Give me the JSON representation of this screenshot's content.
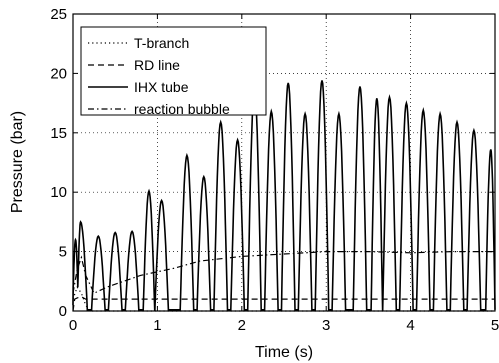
{
  "chart_data": {
    "type": "line",
    "title": "",
    "xlabel": "Time (s)",
    "ylabel": "Pressure (bar)",
    "xlim": [
      0,
      5
    ],
    "ylim": [
      0,
      25
    ],
    "xticks": [
      "0",
      "1",
      "2",
      "3",
      "4",
      "5"
    ],
    "yticks": [
      "0",
      "5",
      "10",
      "15",
      "20",
      "25"
    ],
    "grid": true,
    "legend_position": "top-left",
    "colors": {
      "ink": "#000000",
      "background": "#ffffff"
    },
    "series": [
      {
        "name": "T-branch",
        "style": "dotted",
        "x": [
          0,
          0.05,
          0.1,
          0.15,
          0.2,
          1.0,
          2.0,
          3.0,
          4.0,
          5.0
        ],
        "y": [
          1,
          2,
          1.5,
          0.5,
          0,
          0,
          0,
          0,
          0,
          0
        ]
      },
      {
        "name": "RD line",
        "style": "dashed",
        "x": [
          0,
          0.02,
          0.05,
          0.1,
          0.15,
          1.0,
          2.0,
          3.0,
          4.0,
          5.0
        ],
        "y": [
          0,
          1.0,
          1.1,
          1.2,
          1.0,
          1.0,
          1.0,
          1.0,
          1.0,
          1.0
        ]
      },
      {
        "name": "IHX tube",
        "style": "solid",
        "peaks": [
          {
            "t": 0.03,
            "p": 6.0
          },
          {
            "t": 0.09,
            "p": 7.5
          },
          {
            "t": 0.3,
            "p": 6.3
          },
          {
            "t": 0.5,
            "p": 6.6
          },
          {
            "t": 0.7,
            "p": 6.7
          },
          {
            "t": 0.9,
            "p": 10.1
          },
          {
            "t": 1.05,
            "p": 9.3
          },
          {
            "t": 1.35,
            "p": 13.1
          },
          {
            "t": 1.55,
            "p": 11.3
          },
          {
            "t": 1.75,
            "p": 15.9
          },
          {
            "t": 1.95,
            "p": 14.4
          },
          {
            "t": 2.15,
            "p": 18.6
          },
          {
            "t": 2.35,
            "p": 16.8
          },
          {
            "t": 2.55,
            "p": 19.2
          },
          {
            "t": 2.75,
            "p": 16.6
          },
          {
            "t": 2.95,
            "p": 19.4
          },
          {
            "t": 3.15,
            "p": 16.6
          },
          {
            "t": 3.4,
            "p": 18.9
          },
          {
            "t": 3.6,
            "p": 17.9
          },
          {
            "t": 3.75,
            "p": 18.0
          },
          {
            "t": 3.95,
            "p": 17.5
          },
          {
            "t": 4.15,
            "p": 16.9
          },
          {
            "t": 4.35,
            "p": 16.6
          },
          {
            "t": 4.55,
            "p": 15.9
          },
          {
            "t": 4.75,
            "p": 15.2
          },
          {
            "t": 4.95,
            "p": 13.6
          }
        ]
      },
      {
        "name": "reaction bubble",
        "style": "dash-dot",
        "x": [
          0,
          0.05,
          0.1,
          0.15,
          0.25,
          0.4,
          0.6,
          0.8,
          1.0,
          1.2,
          1.5,
          2.0,
          2.5,
          3.0,
          3.5,
          4.0,
          4.5,
          5.0
        ],
        "y": [
          1.5,
          3.5,
          4.5,
          3.0,
          1.5,
          2.0,
          2.5,
          3.0,
          3.3,
          3.6,
          4.2,
          4.6,
          4.8,
          5.0,
          5.0,
          4.9,
          5.0,
          5.0
        ]
      }
    ]
  }
}
